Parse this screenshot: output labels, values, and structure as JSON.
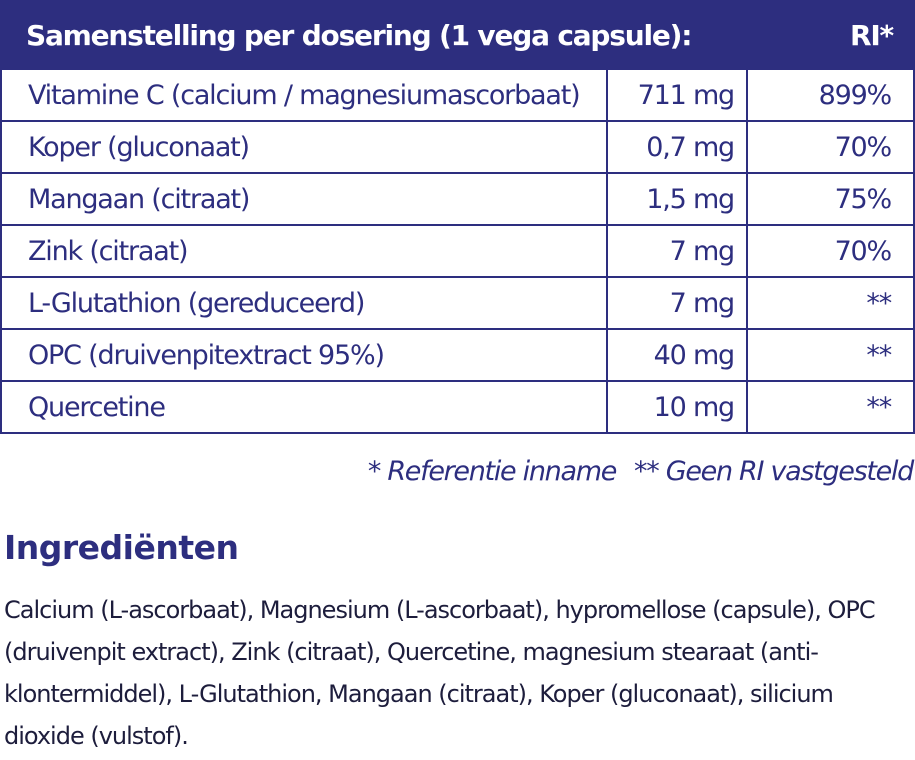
{
  "table": {
    "header_label": "Samenstelling per dosering (1 vega capsule):",
    "header_ri": "RI*",
    "rows": [
      {
        "name": "Vitamine C (calcium / magnesiumascorbaat)",
        "amount": "711 mg",
        "ri": "899%"
      },
      {
        "name": "Koper (gluconaat)",
        "amount": "0,7 mg",
        "ri": "70%"
      },
      {
        "name": "Mangaan (citraat)",
        "amount": "1,5 mg",
        "ri": "75%"
      },
      {
        "name": "Zink (citraat)",
        "amount": "7 mg",
        "ri": "70%"
      },
      {
        "name": "L-Glutathion (gereduceerd)",
        "amount": "7 mg",
        "ri": "**"
      },
      {
        "name": "OPC (druivenpitextract 95%)",
        "amount": "40 mg",
        "ri": "**"
      },
      {
        "name": "Quercetine",
        "amount": "10 mg",
        "ri": "**"
      }
    ]
  },
  "footnote": {
    "ri_note": "* Referentie inname",
    "no_ri_note": "** Geen RI vastgesteld"
  },
  "ingredients": {
    "title": "Ingrediënten",
    "text": "Calcium (L-ascorbaat), Magnesium (L-ascorbaat), hypromellose (capsule), OPC (druivenpit extract), Zink (citraat), Quercetine, magnesium stearaat (anti-klontermiddel), L-Glutathion, Mangaan (citraat), Koper (gluconaat), silicium dioxide (vulstof)."
  }
}
